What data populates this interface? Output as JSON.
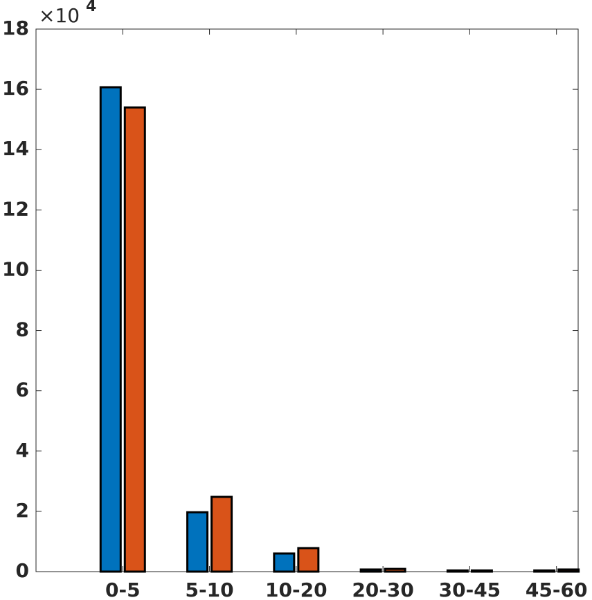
{
  "chart_data": {
    "type": "bar",
    "categories": [
      "0-5",
      "5-10",
      "10-20",
      "20-30",
      "30-45",
      "45-60"
    ],
    "series": [
      {
        "color": "#0072BD",
        "values": [
          16.07,
          1.97,
          0.6,
          0.07,
          0.04,
          0.04
        ]
      },
      {
        "color": "#D95319",
        "values": [
          15.4,
          2.48,
          0.78,
          0.09,
          0.04,
          0.07
        ]
      }
    ],
    "ylim": [
      0,
      18
    ],
    "yticks": [
      0,
      2,
      4,
      6,
      8,
      10,
      12,
      14,
      16,
      18
    ],
    "y_multiplier": "×10",
    "y_exponent": "4"
  }
}
